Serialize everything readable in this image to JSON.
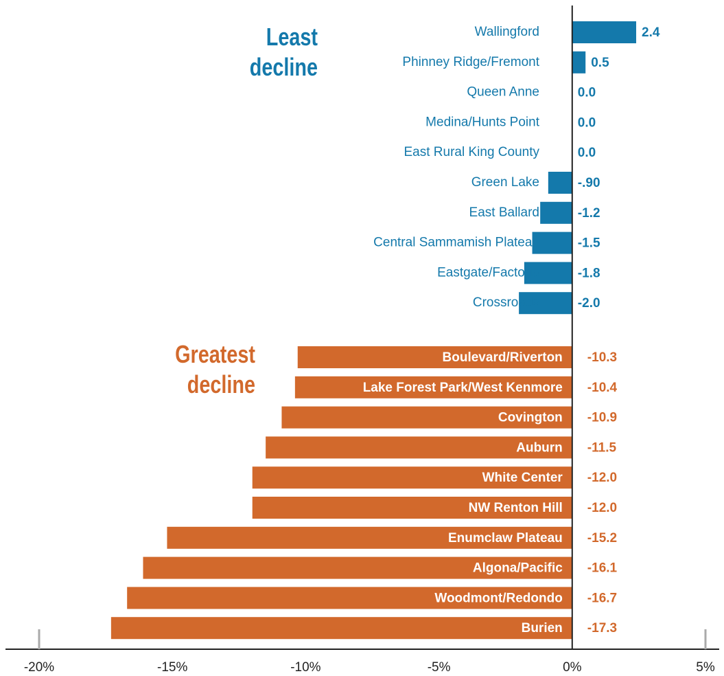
{
  "chart_data": {
    "type": "bar",
    "orientation": "horizontal",
    "groups": [
      {
        "name": "Least decline",
        "color": "#1479ab",
        "categories": [
          "Wallingford",
          "Phinney Ridge/Fremont",
          "Queen Anne",
          "Medina/Hunts Point",
          "East Rural King County",
          "Green Lake",
          "East Ballard",
          "Central Sammamish Plateau",
          "Eastgate/Factoria",
          "Crossroads"
        ],
        "values": [
          2.4,
          0.5,
          0,
          0,
          0,
          -0.9,
          -1.2,
          -1.5,
          -1.8,
          -2.0
        ],
        "value_labels": [
          "2.4",
          "0.5",
          "0.0",
          "0.0",
          "0.0",
          "-.90",
          "-1.2",
          "-1.5",
          "-1.8",
          "-2.0"
        ]
      },
      {
        "name": "Greatest decline",
        "color": "#d2692c",
        "categories": [
          "Boulevard/Riverton",
          "Lake Forest Park/West Kenmore",
          "Covington",
          "Auburn",
          "White Center",
          "NW Renton Hill",
          "Enumclaw Plateau",
          "Algona/Pacific",
          "Woodmont/Redondo",
          "Burien"
        ],
        "values": [
          -10.3,
          -10.4,
          -10.9,
          -11.5,
          -12.0,
          -12.0,
          -15.2,
          -16.1,
          -16.7,
          -17.3
        ],
        "value_labels": [
          "-10.3",
          "-10.4",
          "-10.9",
          "-11.5",
          "-12.0",
          "-12.0",
          "-15.2",
          "-16.1",
          "-16.7",
          "-17.3"
        ]
      }
    ],
    "xlim": [
      -20,
      5
    ],
    "xticks": [
      {
        "value": -20,
        "label": "-20%"
      },
      {
        "value": -15,
        "label": "-15%"
      },
      {
        "value": -10,
        "label": "-10%"
      },
      {
        "value": -5,
        "label": "-5%"
      },
      {
        "value": 0,
        "label": "0%"
      },
      {
        "value": 5,
        "label": "5%"
      }
    ]
  }
}
